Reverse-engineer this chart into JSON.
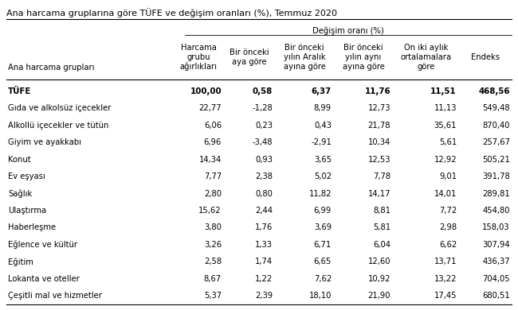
{
  "title": "Ana harcama gruplarına göre TÜFE ve değişim oranları (%), Temmuz 2020",
  "degisim_label": "Değişim oranı (%)",
  "col_headers": [
    "Ana harcama grupları",
    "Harcama\ngrubu\nağırlıkları",
    "Bir önceki\naya göre",
    "Bir önceki\nyılın Aralık\nayına göre",
    "Bir önceki\nyılın aynı\nayına göre",
    "On iki aylık\nortalamalara\ngöre",
    "Endeks"
  ],
  "rows": [
    [
      "TÜFE",
      "100,00",
      "0,58",
      "6,37",
      "11,76",
      "11,51",
      "468,56"
    ],
    [
      "Gıda ve alkolsüz içecekler",
      "22,77",
      "-1,28",
      "8,99",
      "12,73",
      "11,13",
      "549,48"
    ],
    [
      "Alkollü içecekler ve tütün",
      "6,06",
      "0,23",
      "0,43",
      "21,78",
      "35,61",
      "870,40"
    ],
    [
      "Giyim ve ayakkabı",
      "6,96",
      "-3,48",
      "-2,91",
      "10,34",
      "5,61",
      "257,67"
    ],
    [
      "Konut",
      "14,34",
      "0,93",
      "3,65",
      "12,53",
      "12,92",
      "505,21"
    ],
    [
      "Ev eşyası",
      "7,77",
      "2,38",
      "5,02",
      "7,78",
      "9,01",
      "391,78"
    ],
    [
      "Sağlık",
      "2,80",
      "0,80",
      "11,82",
      "14,17",
      "14,01",
      "289,81"
    ],
    [
      "Ulaştırma",
      "15,62",
      "2,44",
      "6,99",
      "8,81",
      "7,72",
      "454,80"
    ],
    [
      "Haberleşme",
      "3,80",
      "1,76",
      "3,69",
      "5,81",
      "2,98",
      "158,03"
    ],
    [
      "Eğlence ve kültür",
      "3,26",
      "1,33",
      "6,71",
      "6,04",
      "6,62",
      "307,94"
    ],
    [
      "Eğitim",
      "2,58",
      "1,74",
      "6,65",
      "12,60",
      "13,71",
      "436,37"
    ],
    [
      "Lokanta ve oteller",
      "8,67",
      "1,22",
      "7,62",
      "10,92",
      "13,22",
      "704,05"
    ],
    [
      "Çeşitli mal ve hizmetler",
      "5,37",
      "2,39",
      "18,10",
      "21,90",
      "17,45",
      "680,51"
    ]
  ],
  "bold_row_index": 0,
  "background_color": "#ffffff",
  "font_size": 7.2,
  "title_font_size": 8.0
}
